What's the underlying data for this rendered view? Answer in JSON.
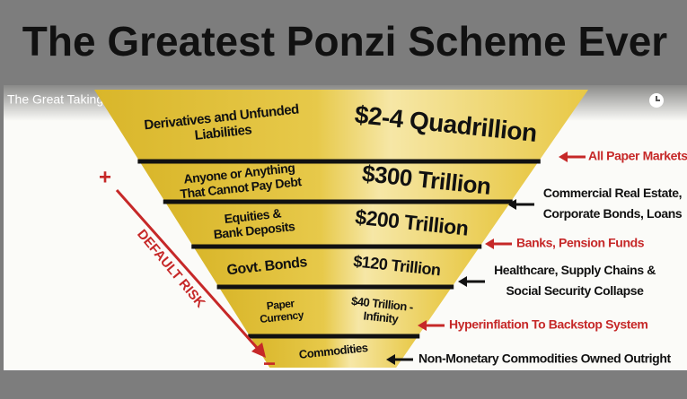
{
  "header": {
    "title": "The Greatest Ponzi Scheme Ever"
  },
  "video": {
    "title": "The Great Taking - Documentary"
  },
  "risk": {
    "top": "+",
    "label": "DEFAULT RISK",
    "bottom": "−"
  },
  "levels": [
    {
      "label": [
        "Derivatives and Unfunded",
        "Liabilities"
      ],
      "value": [
        "$2-4 Quadrillion"
      ],
      "note": [
        "All Paper Markets"
      ],
      "note_color": "#c62828"
    },
    {
      "label": [
        "Anyone or Anything",
        "That Cannot Pay Debt"
      ],
      "value": [
        "$300 Trillion"
      ],
      "note": [
        "Commercial Real Estate,",
        "Corporate Bonds, Loans"
      ],
      "note_color": "#111111"
    },
    {
      "label": [
        "Equities &",
        "Bank Deposits"
      ],
      "value": [
        "$200 Trillion"
      ],
      "note": [
        "Banks, Pension Funds"
      ],
      "note_color": "#c62828"
    },
    {
      "label": [
        "Govt. Bonds"
      ],
      "value": [
        "$120 Trillion"
      ],
      "note": [
        "Healthcare, Supply Chains &",
        "Social Security Collapse"
      ],
      "note_color": "#111111"
    },
    {
      "label": [
        "Paper",
        "Currency"
      ],
      "value": [
        "$40 Trillion -",
        "Infinity"
      ],
      "note": [
        "Hyperinflation To Backstop System"
      ],
      "note_color": "#c62828"
    },
    {
      "label": [
        "Commodities"
      ],
      "note": [
        "Non-Monetary Commodities Owned Outright"
      ],
      "note_color": "#111111"
    }
  ]
}
